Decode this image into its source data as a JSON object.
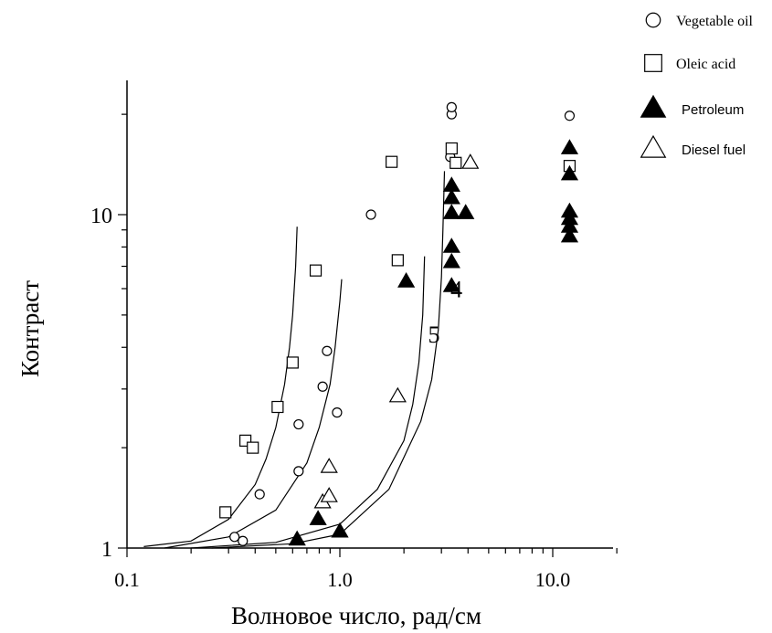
{
  "chart_data": {
    "type": "scatter",
    "x_scale": "log",
    "y_scale": "log",
    "xlim": [
      0.1,
      20
    ],
    "ylim": [
      1,
      25
    ],
    "xlabel": "Волновое число, рад/см",
    "ylabel": "Контраст",
    "x_ticks": [
      "0.1",
      "1.0",
      "10.0"
    ],
    "y_ticks": [
      "1",
      "10"
    ],
    "grid": false,
    "legend_position": "top-right",
    "series": [
      {
        "name": "Vegetable oil",
        "marker": "open-circle",
        "points": [
          [
            0.32,
            1.08
          ],
          [
            0.35,
            1.05
          ],
          [
            0.42,
            1.45
          ],
          [
            0.64,
            2.35
          ],
          [
            0.64,
            1.7
          ],
          [
            0.83,
            3.05
          ],
          [
            0.87,
            3.9
          ],
          [
            0.97,
            2.55
          ],
          [
            1.4,
            10
          ],
          [
            3.3,
            14.9
          ],
          [
            3.35,
            20
          ],
          [
            3.35,
            21
          ],
          [
            12,
            19.8
          ]
        ]
      },
      {
        "name": "Oleic acid",
        "marker": "open-square",
        "points": [
          [
            0.29,
            1.28
          ],
          [
            0.36,
            2.1
          ],
          [
            0.39,
            2.0
          ],
          [
            0.51,
            2.65
          ],
          [
            0.6,
            3.6
          ],
          [
            0.77,
            6.8
          ],
          [
            1.75,
            14.4
          ],
          [
            1.87,
            7.3
          ],
          [
            3.35,
            15.8
          ],
          [
            3.5,
            14.3
          ],
          [
            12,
            14
          ]
        ]
      },
      {
        "name": "Petroleum",
        "marker": "filled-triangle",
        "points": [
          [
            0.63,
            1.06
          ],
          [
            0.79,
            1.22
          ],
          [
            1.0,
            1.12
          ],
          [
            2.05,
            6.3
          ],
          [
            3.35,
            6.1
          ],
          [
            3.35,
            7.2
          ],
          [
            3.35,
            8.0
          ],
          [
            3.35,
            10.1
          ],
          [
            3.35,
            11.2
          ],
          [
            3.35,
            12.2
          ],
          [
            3.9,
            10.1
          ],
          [
            12,
            8.6
          ],
          [
            12,
            9.2
          ],
          [
            12,
            9.7
          ],
          [
            12,
            10.2
          ],
          [
            12,
            13.2
          ],
          [
            12,
            15.8
          ]
        ]
      },
      {
        "name": "Diesel fuel",
        "marker": "open-triangle",
        "points": [
          [
            0.83,
            1.37
          ],
          [
            0.89,
            1.43
          ],
          [
            0.89,
            1.75
          ],
          [
            1.87,
            2.85
          ],
          [
            4.1,
            14.3
          ]
        ]
      }
    ],
    "curves": [
      {
        "points": [
          [
            0.12,
            1.01
          ],
          [
            0.2,
            1.05
          ],
          [
            0.3,
            1.22
          ],
          [
            0.4,
            1.55
          ],
          [
            0.45,
            1.85
          ],
          [
            0.5,
            2.3
          ],
          [
            0.55,
            3.1
          ],
          [
            0.58,
            4.0
          ],
          [
            0.6,
            5.0
          ],
          [
            0.62,
            7.0
          ],
          [
            0.63,
            9.2
          ]
        ]
      },
      {
        "points": [
          [
            0.15,
            1.0
          ],
          [
            0.3,
            1.08
          ],
          [
            0.5,
            1.3
          ],
          [
            0.7,
            1.8
          ],
          [
            0.8,
            2.3
          ],
          [
            0.9,
            3.1
          ],
          [
            0.95,
            4.0
          ],
          [
            1.0,
            5.5
          ],
          [
            1.02,
            6.4
          ]
        ]
      },
      {
        "label": "5",
        "points": [
          [
            0.2,
            1.0
          ],
          [
            0.5,
            1.04
          ],
          [
            1.0,
            1.18
          ],
          [
            1.5,
            1.5
          ],
          [
            2.0,
            2.1
          ],
          [
            2.2,
            2.7
          ],
          [
            2.35,
            3.6
          ],
          [
            2.45,
            5.0
          ],
          [
            2.5,
            7.5
          ]
        ]
      },
      {
        "label": "4",
        "points": [
          [
            0.25,
            1.0
          ],
          [
            0.6,
            1.03
          ],
          [
            1.0,
            1.1
          ],
          [
            1.7,
            1.5
          ],
          [
            2.4,
            2.4
          ],
          [
            2.7,
            3.2
          ],
          [
            2.9,
            4.5
          ],
          [
            3.0,
            6.5
          ],
          [
            3.05,
            9.0
          ],
          [
            3.1,
            13.5
          ]
        ]
      }
    ]
  }
}
